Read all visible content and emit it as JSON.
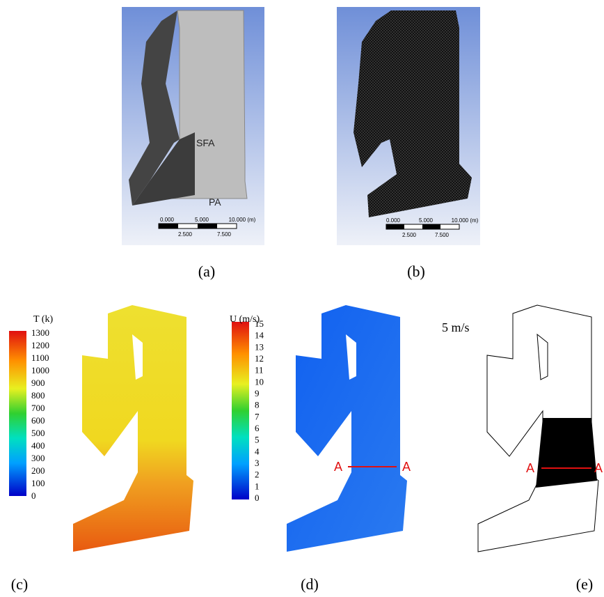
{
  "panels": [
    {
      "label": "(a)",
      "sfa": "SFA",
      "pa": "PA",
      "scale_top": [
        "0.000",
        "5.000",
        "10.000 (m)"
      ],
      "scale_bottom": [
        "2.500",
        "7.500"
      ]
    },
    {
      "label": "(b)",
      "scale_top": [
        "0.000",
        "5.000",
        "10.000 (m)"
      ],
      "scale_bottom": [
        "2.500",
        "7.500"
      ]
    },
    {
      "label": "(c)"
    },
    {
      "label": "(d)",
      "section": [
        "A",
        "A"
      ]
    },
    {
      "label": "(e)",
      "reference": "5 m/s",
      "section": [
        "A",
        "A"
      ]
    }
  ],
  "colorbars": [
    {
      "title": "T (k)",
      "ticks": [
        0,
        100,
        200,
        300,
        400,
        500,
        600,
        700,
        800,
        900,
        1000,
        1100,
        1200,
        1300
      ]
    },
    {
      "title": "U (m/s)",
      "ticks": [
        0,
        1,
        2,
        3,
        4,
        5,
        6,
        7,
        8,
        9,
        10,
        11,
        12,
        13,
        14,
        15
      ]
    }
  ]
}
